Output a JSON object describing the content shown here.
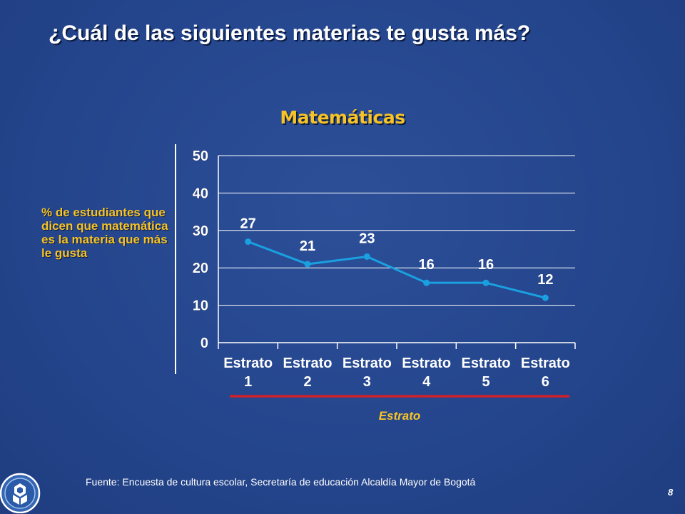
{
  "slide": {
    "title": "¿Cuál de las siguientes materias te gusta más?",
    "source": "Fuente: Encuesta de cultura escolar, Secretaría de educación Alcaldía Mayor de Bogotá",
    "page_number": "8"
  },
  "colors": {
    "background": "#26478e",
    "line": "#1aa0e0",
    "title_accent": "#f7c325",
    "axis_underline": "#d0202a",
    "axis": "#ffffff"
  },
  "icons": {
    "logo": "flower-emblem-icon"
  },
  "chart_data": {
    "type": "line",
    "title": "Matemáticas",
    "ylabel": "% de estudiantes que dicen que matemática  es la materia que más le gusta",
    "xlabel": "Estrato",
    "categories": [
      [
        "Estrato",
        "1"
      ],
      [
        "Estrato",
        "2"
      ],
      [
        "Estrato",
        "3"
      ],
      [
        "Estrato",
        "4"
      ],
      [
        "Estrato",
        "5"
      ],
      [
        "Estrato",
        "6"
      ]
    ],
    "values": [
      27,
      21,
      23,
      16,
      16,
      12
    ],
    "data_labels": [
      "27",
      "21",
      "23",
      "16",
      "16",
      "12"
    ],
    "yticks": [
      0,
      10,
      20,
      30,
      40,
      50
    ],
    "ylim": [
      0,
      50
    ],
    "grid": true,
    "legend": "none"
  }
}
